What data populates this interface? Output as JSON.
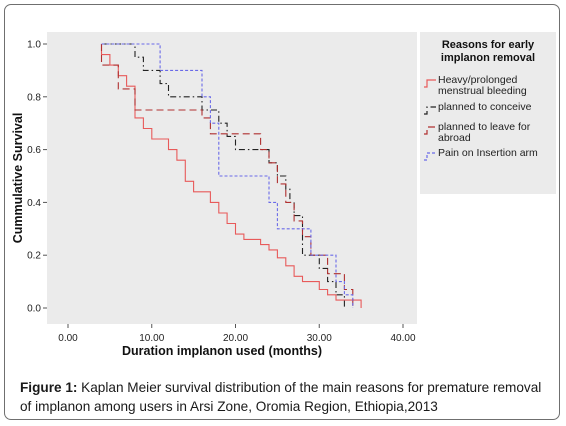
{
  "chart_data": {
    "type": "step",
    "title": "",
    "xlabel": "Duration implanon used (months)",
    "ylabel": "Cummulative Survival",
    "xlim": [
      0,
      40
    ],
    "ylim": [
      0,
      1.0
    ],
    "xticks": [
      "0.00",
      "10.00",
      "20.00",
      "30.00",
      "40.00"
    ],
    "yticks": [
      "0.0",
      "0.2",
      "0.4",
      "0.6",
      "0.8",
      "1.0"
    ],
    "grid": false,
    "legend": {
      "title": "Reasons for early implanon removal",
      "placement": "top-right"
    },
    "series": [
      {
        "name": "Heavy/prolonged menstrual bleeding",
        "color": "#e85a5a",
        "dash": "solid",
        "points": [
          [
            4,
            1.0
          ],
          [
            4,
            0.96
          ],
          [
            5,
            0.96
          ],
          [
            5,
            0.92
          ],
          [
            6,
            0.92
          ],
          [
            6,
            0.88
          ],
          [
            7,
            0.88
          ],
          [
            7,
            0.84
          ],
          [
            8,
            0.84
          ],
          [
            8,
            0.72
          ],
          [
            9,
            0.72
          ],
          [
            9,
            0.68
          ],
          [
            10,
            0.68
          ],
          [
            10,
            0.64
          ],
          [
            12,
            0.64
          ],
          [
            12,
            0.6
          ],
          [
            13,
            0.6
          ],
          [
            13,
            0.56
          ],
          [
            14,
            0.56
          ],
          [
            14,
            0.48
          ],
          [
            15,
            0.48
          ],
          [
            15,
            0.44
          ],
          [
            17,
            0.44
          ],
          [
            17,
            0.4
          ],
          [
            18,
            0.4
          ],
          [
            18,
            0.36
          ],
          [
            19,
            0.36
          ],
          [
            19,
            0.32
          ],
          [
            20,
            0.32
          ],
          [
            20,
            0.28
          ],
          [
            21,
            0.28
          ],
          [
            21,
            0.26
          ],
          [
            23,
            0.26
          ],
          [
            23,
            0.24
          ],
          [
            24,
            0.24
          ],
          [
            24,
            0.22
          ],
          [
            25,
            0.22
          ],
          [
            25,
            0.19
          ],
          [
            26,
            0.19
          ],
          [
            26,
            0.16
          ],
          [
            27,
            0.16
          ],
          [
            27,
            0.12
          ],
          [
            28,
            0.12
          ],
          [
            28,
            0.1
          ],
          [
            30,
            0.1
          ],
          [
            30,
            0.07
          ],
          [
            31,
            0.07
          ],
          [
            31,
            0.05
          ],
          [
            32,
            0.05
          ],
          [
            32,
            0.03
          ],
          [
            35,
            0.03
          ],
          [
            35,
            0.0
          ]
        ]
      },
      {
        "name": "planned to conceive",
        "color": "#222222",
        "dash": "dashdot",
        "points": [
          [
            4,
            1.0
          ],
          [
            8,
            1.0
          ],
          [
            8,
            0.95
          ],
          [
            9,
            0.95
          ],
          [
            9,
            0.9
          ],
          [
            11,
            0.9
          ],
          [
            11,
            0.85
          ],
          [
            12,
            0.85
          ],
          [
            12,
            0.8
          ],
          [
            16,
            0.8
          ],
          [
            16,
            0.75
          ],
          [
            18,
            0.75
          ],
          [
            18,
            0.7
          ],
          [
            19,
            0.7
          ],
          [
            19,
            0.65
          ],
          [
            20,
            0.65
          ],
          [
            20,
            0.6
          ],
          [
            24,
            0.6
          ],
          [
            24,
            0.55
          ],
          [
            25,
            0.55
          ],
          [
            25,
            0.5
          ],
          [
            26,
            0.5
          ],
          [
            26,
            0.45
          ],
          [
            26.5,
            0.45
          ],
          [
            26.5,
            0.4
          ],
          [
            27,
            0.4
          ],
          [
            27,
            0.35
          ],
          [
            28,
            0.35
          ],
          [
            28,
            0.2
          ],
          [
            30,
            0.2
          ],
          [
            30,
            0.15
          ],
          [
            31,
            0.15
          ],
          [
            31,
            0.1
          ],
          [
            32,
            0.1
          ],
          [
            32,
            0.05
          ],
          [
            33,
            0.05
          ],
          [
            33,
            0.0
          ]
        ]
      },
      {
        "name": "planned to leave for abroad",
        "color": "#b03030",
        "dash": "dash",
        "points": [
          [
            4,
            1.0
          ],
          [
            4,
            0.92
          ],
          [
            6,
            0.92
          ],
          [
            6,
            0.83
          ],
          [
            8,
            0.83
          ],
          [
            8,
            0.75
          ],
          [
            16,
            0.75
          ],
          [
            16,
            0.72
          ],
          [
            17,
            0.72
          ],
          [
            17,
            0.66
          ],
          [
            18,
            0.66
          ],
          [
            18,
            0.66
          ],
          [
            23,
            0.66
          ],
          [
            23,
            0.6
          ],
          [
            24,
            0.6
          ],
          [
            24,
            0.55
          ],
          [
            25,
            0.55
          ],
          [
            25,
            0.47
          ],
          [
            26,
            0.47
          ],
          [
            26,
            0.4
          ],
          [
            27,
            0.4
          ],
          [
            27,
            0.33
          ],
          [
            28,
            0.33
          ],
          [
            28,
            0.27
          ],
          [
            29,
            0.27
          ],
          [
            29,
            0.2
          ],
          [
            31,
            0.2
          ],
          [
            31,
            0.13
          ],
          [
            33,
            0.13
          ],
          [
            33,
            0.07
          ],
          [
            34,
            0.07
          ],
          [
            34,
            0.0
          ]
        ]
      },
      {
        "name": "Pain on Insertion arm",
        "color": "#6a6ae8",
        "dash": "dot",
        "points": [
          [
            4,
            1.0
          ],
          [
            11,
            1.0
          ],
          [
            11,
            0.9
          ],
          [
            16,
            0.9
          ],
          [
            16,
            0.8
          ],
          [
            17,
            0.8
          ],
          [
            17,
            0.7
          ],
          [
            18,
            0.7
          ],
          [
            18,
            0.5
          ],
          [
            24,
            0.5
          ],
          [
            24,
            0.4
          ],
          [
            25,
            0.4
          ],
          [
            25,
            0.3
          ],
          [
            29,
            0.3
          ],
          [
            29,
            0.2
          ],
          [
            32,
            0.2
          ],
          [
            32,
            0.1
          ],
          [
            33,
            0.1
          ],
          [
            33,
            0.05
          ],
          [
            34,
            0.05
          ],
          [
            34,
            0.0
          ]
        ]
      }
    ]
  },
  "caption": {
    "label": "Figure 1:",
    "text": " Kaplan Meier survival distribution of the main reasons for premature removal of implanon among users in Arsi Zone, Oromia Region, Ethiopia,2013"
  }
}
